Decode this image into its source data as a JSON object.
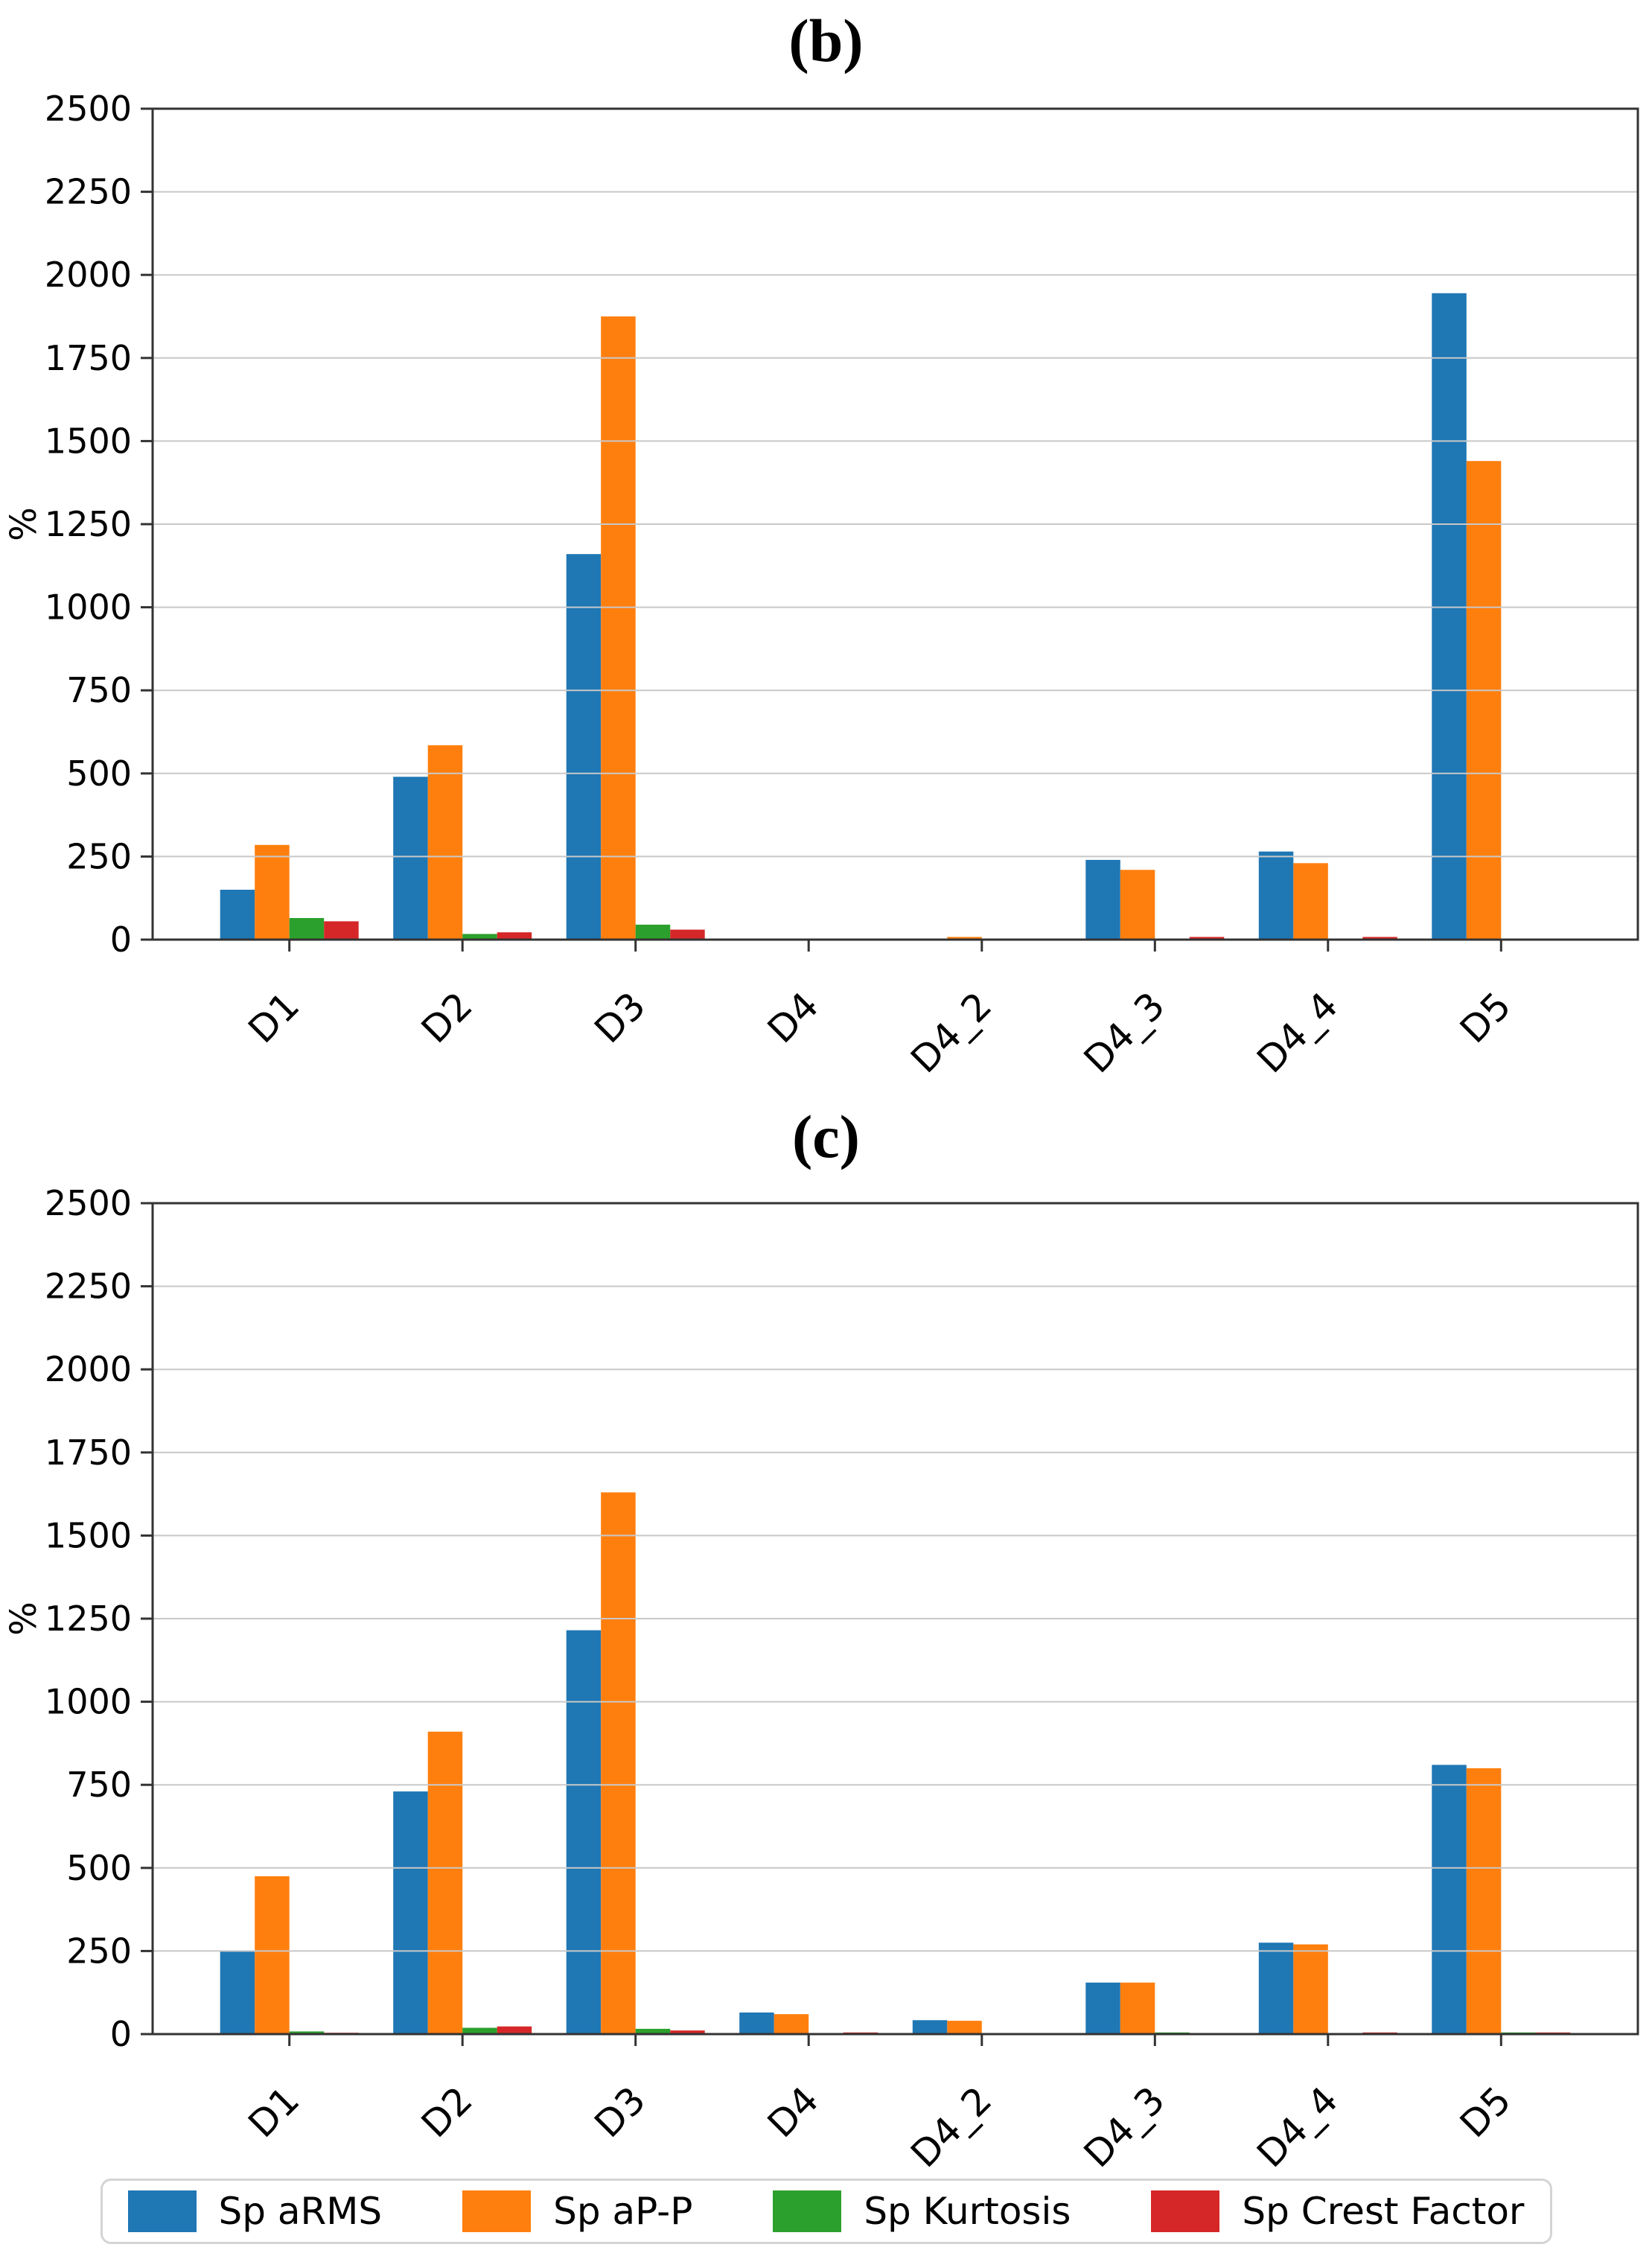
{
  "figure": {
    "background": "#ffffff",
    "grid_color": "#c8c8c8",
    "spine_color": "#333333",
    "text_color": "#000000"
  },
  "chart_data": [
    {
      "type": "bar",
      "title": "(b)",
      "ylabel": "%",
      "ylim": [
        0,
        2500
      ],
      "yticks": [
        0,
        250,
        500,
        750,
        1000,
        1250,
        1500,
        1750,
        2000,
        2250,
        2500
      ],
      "grid": "horizontal-on-top",
      "legend_position": "shared-bottom",
      "categories": [
        "D1",
        "D2",
        "D3",
        "D4",
        "D4_2",
        "D4_3",
        "D4_4",
        "D5"
      ],
      "series": [
        {
          "name": "Sp aRMS",
          "color": "#1f77b4",
          "values": [
            150,
            490,
            1160,
            0,
            0,
            240,
            265,
            1945
          ]
        },
        {
          "name": "Sp aP-P",
          "color": "#ff7f0e",
          "values": [
            285,
            585,
            1875,
            0,
            8,
            210,
            230,
            1440
          ]
        },
        {
          "name": "Sp Kurtosis",
          "color": "#2ca02c",
          "values": [
            65,
            17,
            45,
            0,
            0,
            0,
            0,
            0
          ]
        },
        {
          "name": "Sp Crest Factor",
          "color": "#d62728",
          "values": [
            55,
            22,
            30,
            0,
            0,
            8,
            8,
            0
          ]
        }
      ]
    },
    {
      "type": "bar",
      "title": "(c)",
      "ylabel": "%",
      "ylim": [
        0,
        2500
      ],
      "yticks": [
        0,
        250,
        500,
        750,
        1000,
        1250,
        1500,
        1750,
        2000,
        2250,
        2500
      ],
      "grid": "horizontal-on-top",
      "legend_position": "shared-bottom",
      "categories": [
        "D1",
        "D2",
        "D3",
        "D4",
        "D4_2",
        "D4_3",
        "D4_4",
        "D5"
      ],
      "series": [
        {
          "name": "Sp aRMS",
          "color": "#1f77b4",
          "values": [
            250,
            730,
            1215,
            65,
            42,
            155,
            275,
            810
          ]
        },
        {
          "name": "Sp aP-P",
          "color": "#ff7f0e",
          "values": [
            475,
            910,
            1630,
            60,
            40,
            155,
            270,
            800
          ]
        },
        {
          "name": "Sp Kurtosis",
          "color": "#2ca02c",
          "values": [
            8,
            19,
            16,
            0,
            0,
            5,
            0,
            5
          ]
        },
        {
          "name": "Sp Crest Factor",
          "color": "#d62728",
          "values": [
            4,
            23,
            11,
            5,
            0,
            0,
            5,
            5
          ]
        }
      ]
    }
  ],
  "legend": {
    "items": [
      {
        "label": "Sp aRMS",
        "color": "#1f77b4"
      },
      {
        "label": "Sp aP-P",
        "color": "#ff7f0e"
      },
      {
        "label": "Sp Kurtosis",
        "color": "#2ca02c"
      },
      {
        "label": "Sp Crest Factor",
        "color": "#d62728"
      }
    ]
  }
}
